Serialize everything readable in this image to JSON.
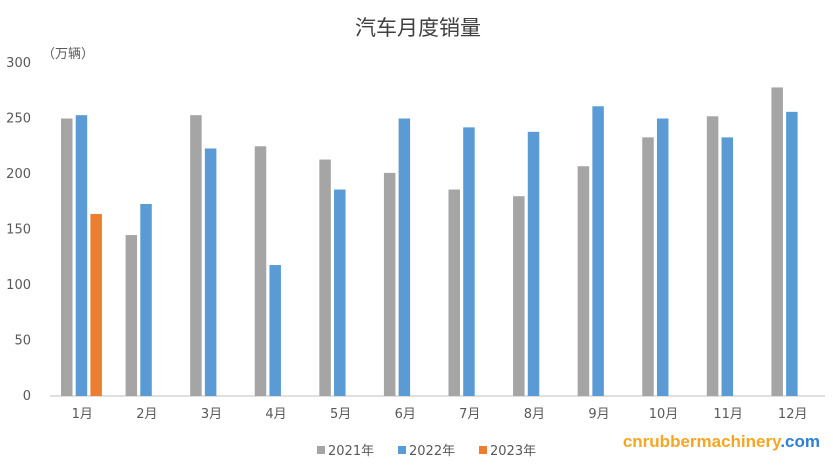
{
  "chart_data": {
    "type": "bar",
    "title": "汽车月度销量",
    "ylabel": "（万辆）",
    "xlabel": "",
    "categories": [
      "1月",
      "2月",
      "3月",
      "4月",
      "5月",
      "6月",
      "7月",
      "8月",
      "9月",
      "10月",
      "11月",
      "12月"
    ],
    "series": [
      {
        "name": "2021年",
        "color": "#a5a5a5",
        "values": [
          250,
          145,
          253,
          225,
          213,
          201,
          186,
          180,
          207,
          233,
          252,
          278
        ]
      },
      {
        "name": "2022年",
        "color": "#5b9bd5",
        "values": [
          253,
          173,
          223,
          118,
          186,
          250,
          242,
          238,
          261,
          250,
          233,
          256
        ]
      },
      {
        "name": "2023年",
        "color": "#ed7d31",
        "values": [
          164,
          null,
          null,
          null,
          null,
          null,
          null,
          null,
          null,
          null,
          null,
          null
        ]
      }
    ],
    "ylim": [
      0,
      300
    ],
    "yticks": [
      0,
      50,
      100,
      150,
      200,
      250,
      300
    ],
    "grid": false,
    "legend_position": "bottom"
  },
  "watermark": {
    "text_main": "cnrubbermachinery",
    "text_suffix": ".com",
    "color_main": "#f5a623",
    "color_suffix": "#2e7fd6"
  }
}
